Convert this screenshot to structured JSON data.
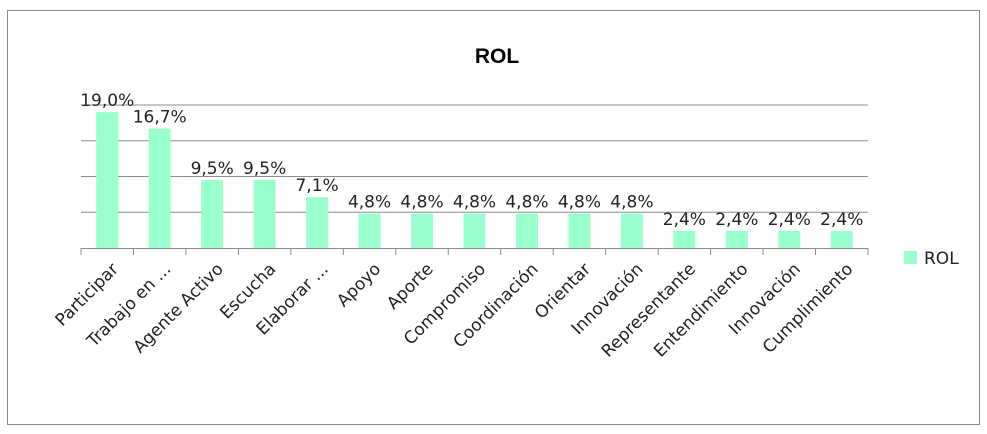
{
  "chart_data": {
    "type": "bar",
    "title": "ROL",
    "categories": [
      "Participar",
      "Trabajo en ...",
      "Agente Activo",
      "Escucha",
      "Elaborar ...",
      "Apoyo",
      "Aporte",
      "Compromiso",
      "Coordinación",
      "Orientar",
      "Innovación",
      "Representante",
      "Entendimiento",
      "Innovación",
      "Cumplimiento"
    ],
    "series": [
      {
        "name": "ROL",
        "values": [
          19.0,
          16.7,
          9.5,
          9.5,
          7.1,
          4.8,
          4.8,
          4.8,
          4.8,
          4.8,
          4.8,
          2.4,
          2.4,
          2.4,
          2.4
        ],
        "labels": [
          "19,0%",
          "16,7%",
          "9,5%",
          "9,5%",
          "7,1%",
          "4,8%",
          "4,8%",
          "4,8%",
          "4,8%",
          "4,8%",
          "4,8%",
          "2,4%",
          "2,4%",
          "2,4%",
          "2,4%"
        ]
      }
    ],
    "ylim": [
      0,
      20
    ],
    "grid": true,
    "legend_position": "right",
    "bar_color": "#99ffcc"
  }
}
